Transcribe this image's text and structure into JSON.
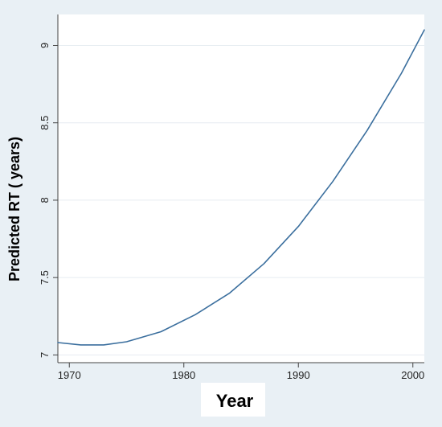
{
  "chart_data": {
    "type": "line",
    "title": "",
    "xlabel": "Year",
    "ylabel": "Predicted RT ( years)",
    "xlim": [
      1969,
      2001
    ],
    "ylim": [
      6.95,
      9.2
    ],
    "xticks": [
      1970,
      1980,
      1990,
      2000
    ],
    "yticks": [
      7,
      7.5,
      8,
      8.5,
      9
    ],
    "ytick_labels": [
      "7",
      "7.5",
      "8",
      "8.5",
      "9"
    ],
    "grid": "horizontal",
    "series": [
      {
        "color": "#3b6f9e",
        "x": [
          1969,
          1971,
          1973,
          1975,
          1978,
          1981,
          1984,
          1987,
          1990,
          1993,
          1996,
          1999,
          2001
        ],
        "y": [
          7.08,
          7.065,
          7.065,
          7.085,
          7.15,
          7.26,
          7.4,
          7.59,
          7.83,
          8.12,
          8.45,
          8.82,
          9.1
        ]
      }
    ]
  },
  "colors": {
    "frame_background": "#e9f0f5",
    "plot_background": "#ffffff",
    "grid": "#e6ecf1",
    "axis": "#444444",
    "line": "#3b6f9e"
  }
}
